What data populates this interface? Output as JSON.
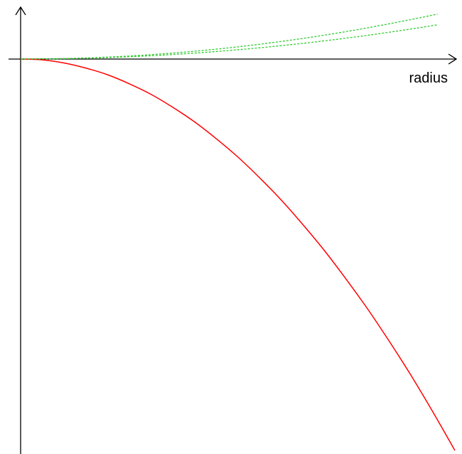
{
  "chart_data": {
    "type": "line",
    "title": "",
    "xlabel": "radius",
    "ylabel": "",
    "grid": false,
    "legend": "none",
    "xlim": [
      0,
      1
    ],
    "ylim": [
      -1,
      0.13
    ],
    "series": [
      {
        "color": "#ff0000",
        "dash": "solid",
        "x": [
          0,
          0.05,
          0.1,
          0.15,
          0.2,
          0.25,
          0.3,
          0.35,
          0.4,
          0.45,
          0.5,
          0.55,
          0.6,
          0.65,
          0.7,
          0.75,
          0.8,
          0.85,
          0.9,
          0.95,
          1.0
        ],
        "y": [
          0,
          -0.002,
          -0.01,
          -0.023,
          -0.04,
          -0.063,
          -0.09,
          -0.123,
          -0.16,
          -0.203,
          -0.25,
          -0.303,
          -0.36,
          -0.423,
          -0.49,
          -0.563,
          -0.64,
          -0.723,
          -0.81,
          -0.903,
          -1.0
        ]
      },
      {
        "color": "#33cc33",
        "dash": "dashed",
        "x": [
          0,
          0.1,
          0.2,
          0.3,
          0.4,
          0.5,
          0.6,
          0.7,
          0.8,
          0.9,
          0.96
        ],
        "y": [
          0,
          0.0013,
          0.005,
          0.0112,
          0.02,
          0.0312,
          0.045,
          0.0612,
          0.08,
          0.1012,
          0.115
        ]
      },
      {
        "color": "#33cc33",
        "dash": "dashed",
        "x": [
          0,
          0.1,
          0.2,
          0.3,
          0.4,
          0.5,
          0.6,
          0.7,
          0.8,
          0.9,
          0.96
        ],
        "y": [
          0,
          0.001,
          0.0038,
          0.0085,
          0.0152,
          0.0238,
          0.0342,
          0.0466,
          0.0608,
          0.077,
          0.0875
        ]
      }
    ]
  }
}
